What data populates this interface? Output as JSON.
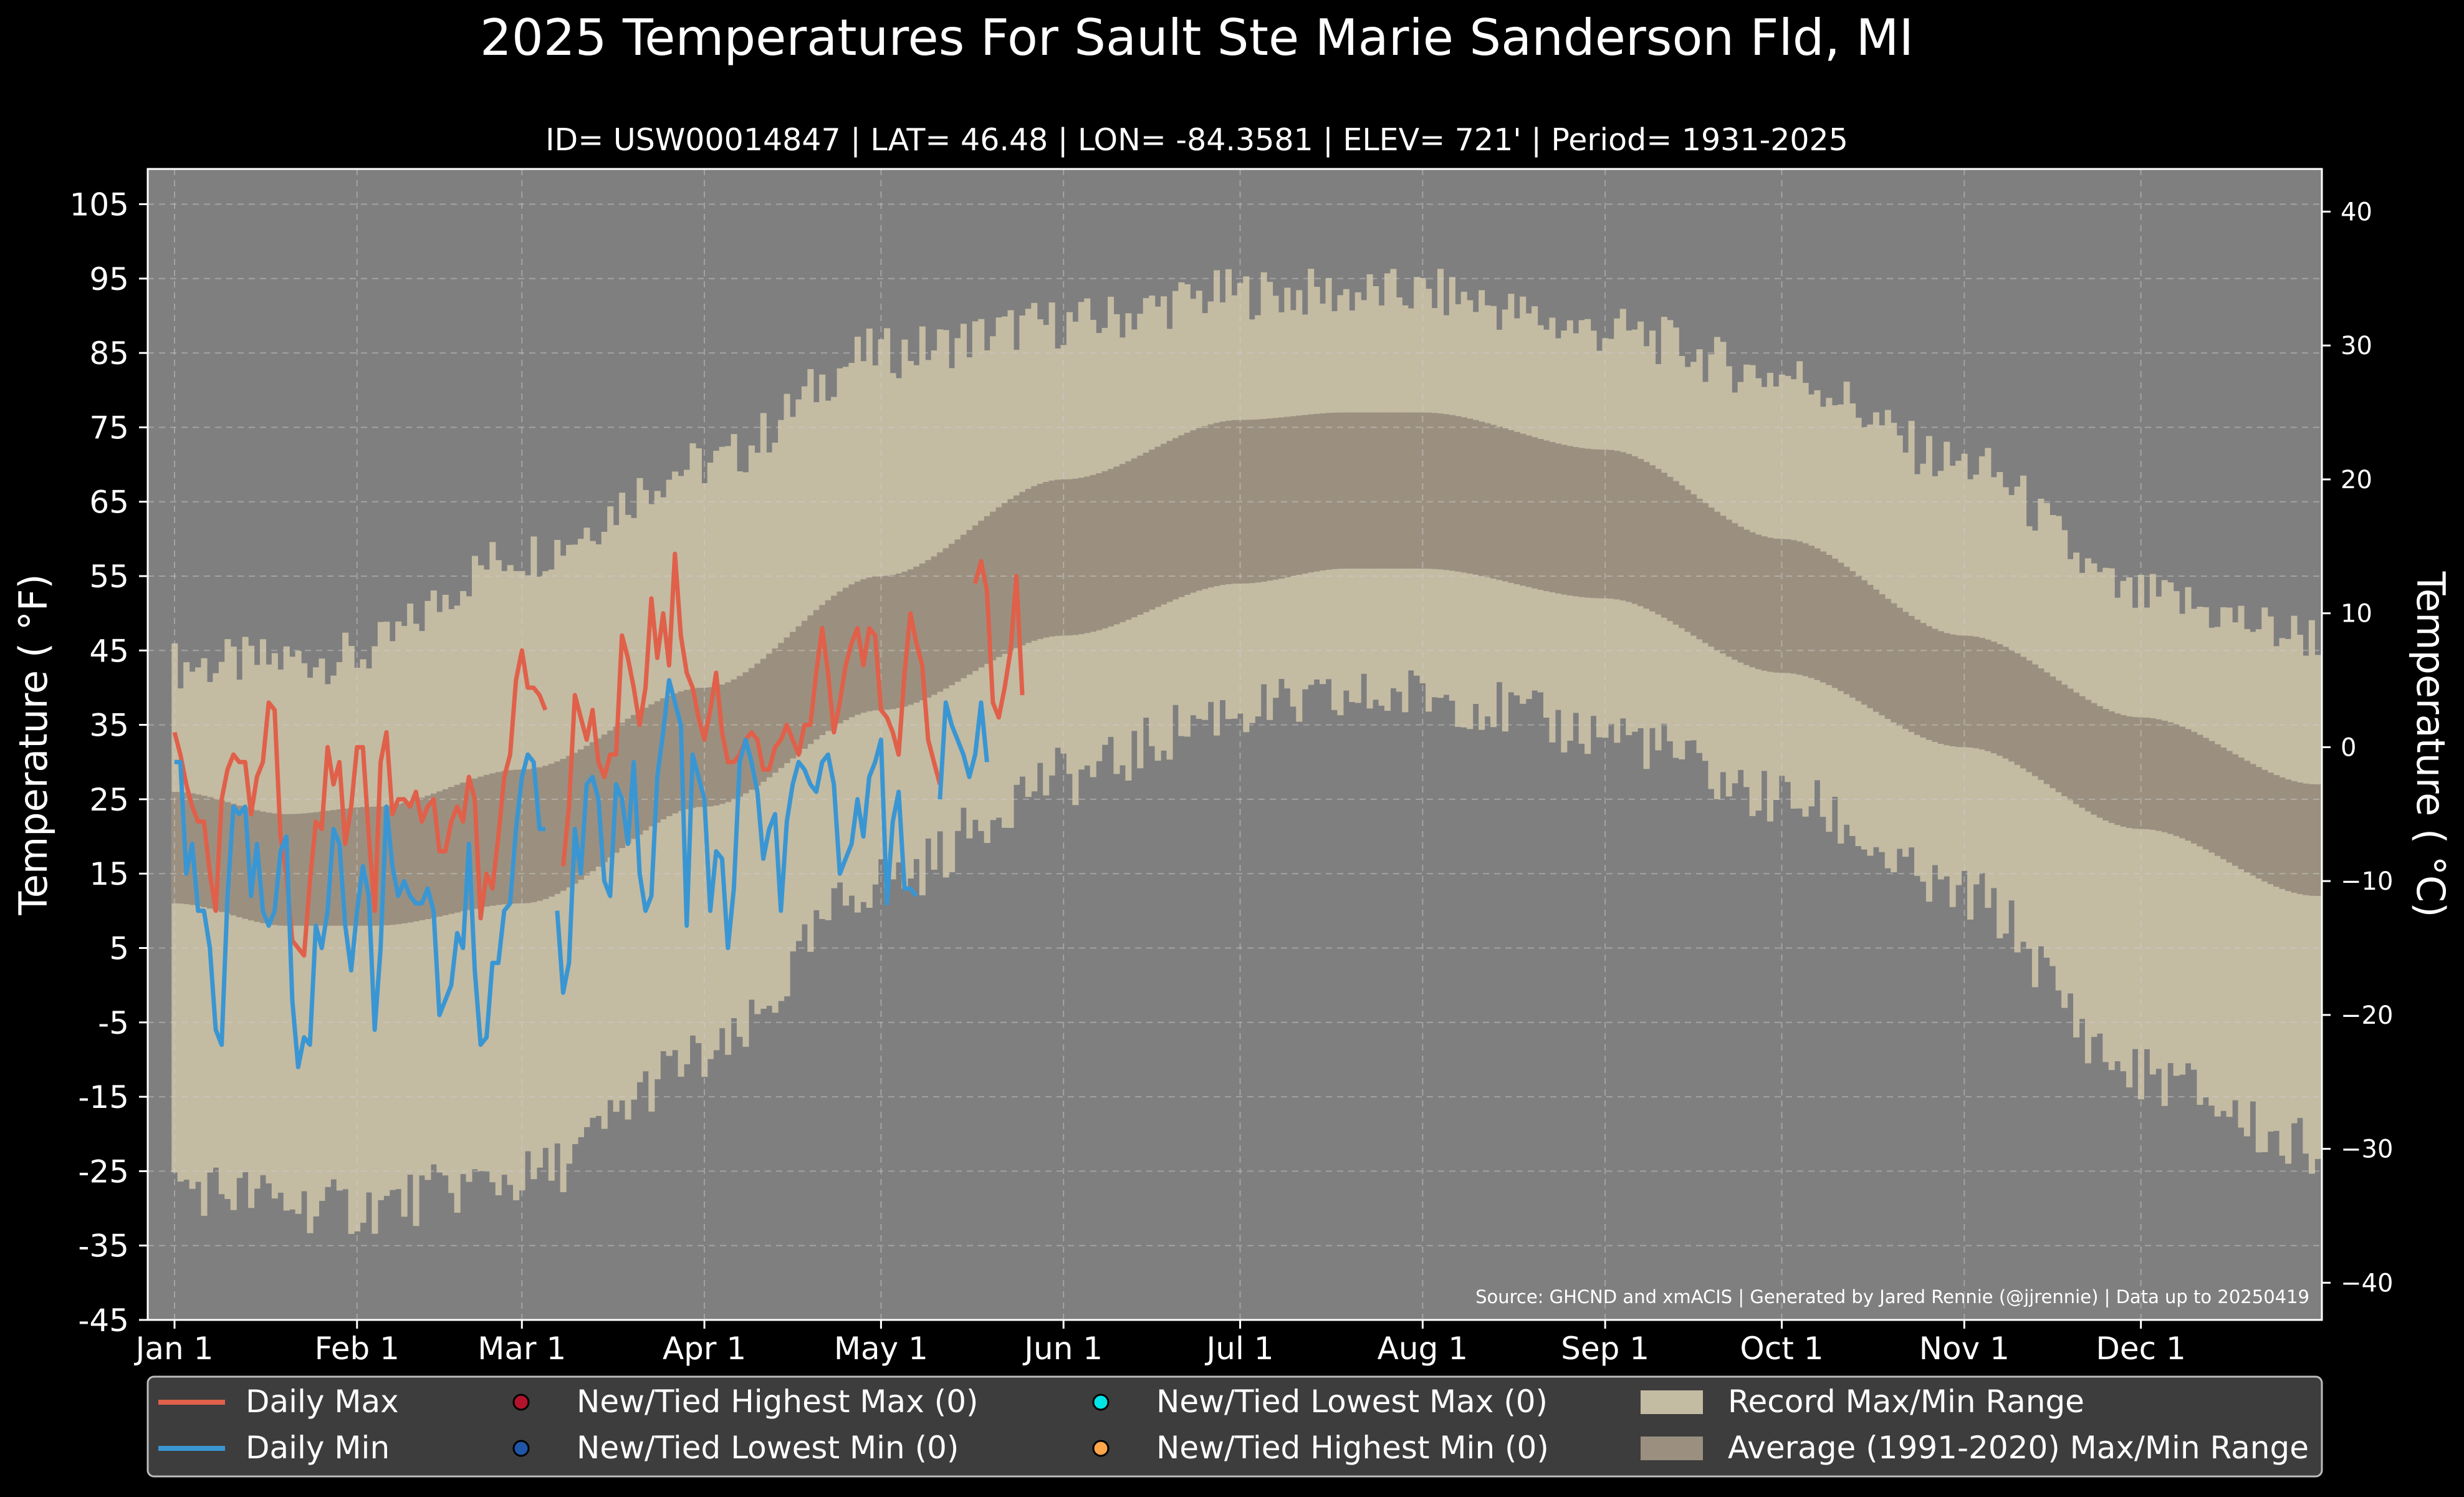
{
  "chart_data": {
    "type": "area",
    "title": "2025 Temperatures For Sault Ste Marie Sanderson Fld, MI",
    "subtitle": "ID= USW00014847 | LAT= 46.48 | LON= -84.3581 | ELEV= 721' | Period= 1931-2025",
    "ylabel": "Temperature ($^\\circ$F)",
    "ylabel_display": "Temperature ( °F)",
    "y2label_display": "Temperature ( °C)",
    "ylim": [
      -45,
      110
    ],
    "y_ticks": [
      "105",
      "95",
      "85",
      "75",
      "65",
      "55",
      "45",
      "35",
      "25",
      "15",
      "5",
      "-5",
      "-15",
      "-25",
      "-35",
      "-45"
    ],
    "y2_ticks": [
      "40",
      "30",
      "20",
      "10",
      "0",
      "−10",
      "−20",
      "−30",
      "−40"
    ],
    "x_ticks": [
      "Jan 1",
      "Feb 1",
      "Mar 1",
      "Apr 1",
      "May 1",
      "Jun 1",
      "Jul 1",
      "Aug 1",
      "Sep 1",
      "Oct 1",
      "Nov 1",
      "Dec 1"
    ],
    "source": "Source: GHCND and xmACIS | Generated by Jared Rennie (@jjrennie) | Data up to 20250419",
    "grid": true,
    "legend_position": "bottom",
    "legend": [
      "Daily Max",
      "Daily Min",
      "New/Tied Highest Max (0)",
      "New/Tied Lowest Min (0)",
      "New/Tied Lowest Max (0)",
      "New/Tied Highest Min (0)",
      "Record Max/Min Range",
      "Average (1991-2020) Max/Min Range"
    ],
    "record_max_anchors": [
      [
        1,
        43
      ],
      [
        30,
        44
      ],
      [
        60,
        58
      ],
      [
        91,
        70
      ],
      [
        121,
        85
      ],
      [
        152,
        89
      ],
      [
        182,
        93
      ],
      [
        213,
        93
      ],
      [
        244,
        88
      ],
      [
        274,
        82
      ],
      [
        305,
        70
      ],
      [
        335,
        52
      ],
      [
        365,
        47
      ]
    ],
    "record_min_anchors": [
      [
        1,
        -27
      ],
      [
        30,
        -30
      ],
      [
        60,
        -26
      ],
      [
        91,
        -10
      ],
      [
        121,
        14
      ],
      [
        152,
        28
      ],
      [
        182,
        37
      ],
      [
        213,
        39
      ],
      [
        244,
        34
      ],
      [
        274,
        25
      ],
      [
        305,
        12
      ],
      [
        335,
        -12
      ],
      [
        365,
        -22
      ]
    ],
    "avg_max_anchors": [
      [
        1,
        26
      ],
      [
        20,
        23
      ],
      [
        35,
        24
      ],
      [
        60,
        29
      ],
      [
        91,
        40
      ],
      [
        121,
        55
      ],
      [
        152,
        68
      ],
      [
        182,
        76
      ],
      [
        200,
        77
      ],
      [
        213,
        77
      ],
      [
        244,
        72
      ],
      [
        274,
        60
      ],
      [
        305,
        47
      ],
      [
        335,
        36
      ],
      [
        365,
        27
      ]
    ],
    "avg_min_anchors": [
      [
        1,
        11
      ],
      [
        20,
        8
      ],
      [
        35,
        8
      ],
      [
        60,
        11
      ],
      [
        91,
        24
      ],
      [
        121,
        37
      ],
      [
        152,
        47
      ],
      [
        182,
        54
      ],
      [
        200,
        56
      ],
      [
        213,
        56
      ],
      [
        244,
        52
      ],
      [
        274,
        42
      ],
      [
        305,
        32
      ],
      [
        335,
        21
      ],
      [
        365,
        12
      ]
    ],
    "daily_max": [
      34,
      31,
      27,
      24,
      22,
      22,
      15,
      10,
      25,
      29,
      31,
      30,
      30,
      23,
      28,
      30,
      38,
      37,
      20,
      15,
      6,
      5,
      4,
      14,
      22,
      21,
      32,
      27,
      30,
      19,
      24,
      32,
      32,
      20,
      10,
      30,
      34,
      23,
      25,
      25,
      24,
      26,
      22,
      24,
      25,
      18,
      18,
      22,
      24,
      22,
      28,
      25,
      9,
      15,
      13,
      20,
      28,
      31,
      41,
      45,
      40,
      40,
      39,
      37,
      null,
      null,
      16,
      24,
      39,
      36,
      33,
      37,
      30,
      28,
      31,
      31,
      47,
      44,
      40,
      35,
      40,
      52,
      44,
      50,
      43,
      58,
      47,
      42,
      40,
      36,
      33,
      37,
      42,
      34,
      30,
      30,
      31,
      33,
      34,
      33,
      29,
      29,
      32,
      33,
      35,
      33,
      31,
      35,
      35,
      42,
      48,
      42,
      34,
      38,
      43,
      46,
      48,
      43,
      48,
      47,
      37,
      36,
      34,
      31,
      42,
      50,
      46,
      43,
      33,
      30,
      27,
      null,
      null,
      null,
      null,
      null,
      54,
      57,
      53,
      38,
      36,
      40,
      45,
      55,
      39
    ],
    "daily_min": [
      30,
      30,
      15,
      19,
      10,
      10,
      5,
      -6,
      -8,
      12,
      24,
      23,
      24,
      12,
      19,
      10,
      8,
      10,
      18,
      20,
      -2,
      -11,
      -7,
      -8,
      8,
      5,
      10,
      21,
      19,
      8,
      2,
      10,
      16,
      12,
      -6,
      5,
      24,
      16,
      12,
      14,
      12,
      11,
      11,
      13,
      10,
      -4,
      -2,
      0,
      7,
      5,
      19,
      2,
      -8,
      -7,
      3,
      3,
      10,
      11,
      21,
      28,
      31,
      30,
      21,
      21,
      null,
      10,
      -1,
      3,
      21,
      15,
      27,
      28,
      25,
      14,
      12,
      27,
      25,
      19,
      30,
      15,
      10,
      12,
      28,
      34,
      41,
      38,
      35,
      8,
      31,
      28,
      25,
      10,
      18,
      17,
      5,
      13,
      30,
      33,
      30,
      26,
      17,
      21,
      23,
      10,
      22,
      27,
      30,
      29,
      27,
      26,
      30,
      31,
      27,
      15,
      17,
      19,
      25,
      20,
      28,
      30,
      33,
      11,
      22,
      26,
      13,
      13,
      12,
      null,
      null,
      null,
      25,
      38,
      35,
      33,
      31,
      28,
      31,
      38,
      30
    ]
  }
}
